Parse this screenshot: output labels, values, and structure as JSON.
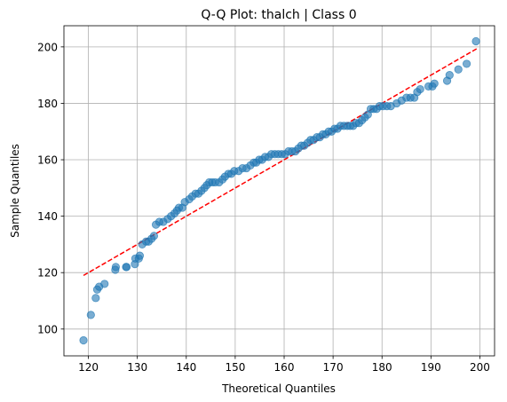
{
  "chart_data": {
    "type": "scatter",
    "title": "Q-Q Plot: thalch | Class 0",
    "xlabel": "Theoretical Quantiles",
    "ylabel": "Sample Quantiles",
    "xlim": [
      115,
      203
    ],
    "ylim": [
      90.5,
      207.5
    ],
    "xticks": [
      120,
      130,
      140,
      150,
      160,
      170,
      180,
      190,
      200
    ],
    "yticks": [
      100,
      120,
      140,
      160,
      180,
      200
    ],
    "grid": true,
    "point_color": "#1f77b4",
    "line_color": "#ff0000",
    "reference_line": {
      "x": [
        119,
        199.5
      ],
      "y": [
        119,
        199.5
      ]
    },
    "points": [
      [
        119,
        96
      ],
      [
        120.5,
        105
      ],
      [
        121.5,
        111
      ],
      [
        121.8,
        114
      ],
      [
        122.2,
        115
      ],
      [
        123.3,
        116
      ],
      [
        125.5,
        121
      ],
      [
        125.6,
        122
      ],
      [
        127.7,
        122
      ],
      [
        127.8,
        122
      ],
      [
        129.5,
        123
      ],
      [
        129.6,
        125
      ],
      [
        130.3,
        125
      ],
      [
        130.5,
        126
      ],
      [
        131,
        130
      ],
      [
        131.8,
        131
      ],
      [
        132.3,
        131
      ],
      [
        132.9,
        132
      ],
      [
        133.4,
        133
      ],
      [
        133.8,
        137
      ],
      [
        134.5,
        138
      ],
      [
        135.3,
        138
      ],
      [
        136.2,
        139
      ],
      [
        136.9,
        140
      ],
      [
        137.6,
        141
      ],
      [
        138.1,
        142
      ],
      [
        138.5,
        143
      ],
      [
        139.2,
        143
      ],
      [
        139.7,
        145
      ],
      [
        140.6,
        146
      ],
      [
        141.2,
        147
      ],
      [
        141.9,
        148
      ],
      [
        142.5,
        148
      ],
      [
        143.1,
        149
      ],
      [
        143.7,
        150
      ],
      [
        144.2,
        151
      ],
      [
        144.7,
        152
      ],
      [
        145.3,
        152
      ],
      [
        145.9,
        152
      ],
      [
        146.7,
        152
      ],
      [
        147.4,
        153
      ],
      [
        147.9,
        154
      ],
      [
        148.6,
        155
      ],
      [
        149.2,
        155
      ],
      [
        149.8,
        156
      ],
      [
        150.7,
        156
      ],
      [
        151.5,
        157
      ],
      [
        152.3,
        157
      ],
      [
        153.1,
        158
      ],
      [
        153.8,
        159
      ],
      [
        154.3,
        159
      ],
      [
        154.9,
        160
      ],
      [
        155.5,
        160
      ],
      [
        156.1,
        161
      ],
      [
        156.8,
        161
      ],
      [
        157.4,
        162
      ],
      [
        158.1,
        162
      ],
      [
        158.8,
        162
      ],
      [
        159.5,
        162
      ],
      [
        160.2,
        162
      ],
      [
        160.9,
        163
      ],
      [
        161.6,
        163
      ],
      [
        162.3,
        163
      ],
      [
        162.9,
        164
      ],
      [
        163.5,
        165
      ],
      [
        164.1,
        165
      ],
      [
        164.8,
        166
      ],
      [
        165.4,
        167
      ],
      [
        166,
        167
      ],
      [
        166.7,
        168
      ],
      [
        167.3,
        168
      ],
      [
        167.9,
        169
      ],
      [
        168.5,
        169
      ],
      [
        169.1,
        170
      ],
      [
        169.7,
        170
      ],
      [
        170.3,
        171
      ],
      [
        170.9,
        171
      ],
      [
        171.5,
        172
      ],
      [
        172.2,
        172
      ],
      [
        172.9,
        172
      ],
      [
        173.5,
        172
      ],
      [
        174.1,
        172
      ],
      [
        174.7,
        173
      ],
      [
        175.3,
        173
      ],
      [
        175.9,
        174
      ],
      [
        176.5,
        175
      ],
      [
        177.1,
        176
      ],
      [
        177.7,
        178
      ],
      [
        178.3,
        178
      ],
      [
        178.9,
        178
      ],
      [
        179.5,
        179
      ],
      [
        180.2,
        179
      ],
      [
        181,
        179
      ],
      [
        181.8,
        179
      ],
      [
        183,
        180
      ],
      [
        184,
        181
      ],
      [
        185,
        182
      ],
      [
        185.8,
        182
      ],
      [
        186.6,
        182
      ],
      [
        187.2,
        184
      ],
      [
        187.8,
        185
      ],
      [
        189.5,
        186
      ],
      [
        190.3,
        186
      ],
      [
        190.7,
        187
      ],
      [
        193.3,
        188
      ],
      [
        193.8,
        190
      ],
      [
        195.6,
        192
      ],
      [
        197.3,
        194
      ],
      [
        199.2,
        202
      ]
    ]
  }
}
